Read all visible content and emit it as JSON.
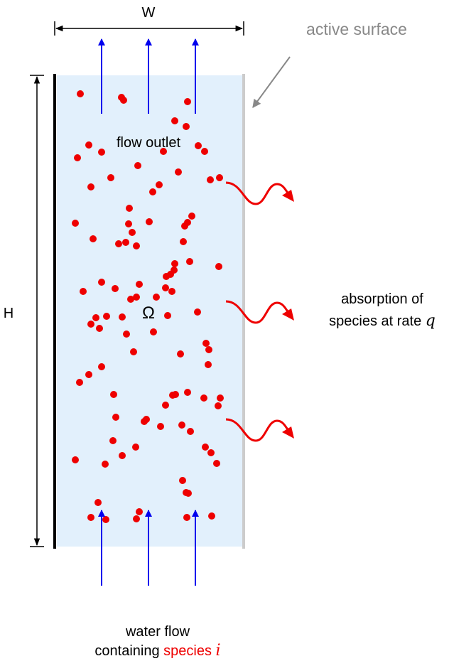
{
  "labels": {
    "width": "W",
    "height": "H",
    "active_surface": "active surface",
    "flow_outlet": "flow outlet",
    "domain": "Ω",
    "absorption_line1": "absorption of",
    "absorption_line2_prefix": "species at rate ",
    "absorption_rate_symbol": "q",
    "water_flow_line1": "water flow",
    "water_flow_line2_prefix": "containing ",
    "species_word": "species ",
    "species_symbol": "i"
  },
  "colors": {
    "domain_fill": "#e2f0fc",
    "particle": "#ee0000",
    "flow_arrow": "#0000ee",
    "absorption_arrow": "#ee0000",
    "active_surface": "#888888",
    "wall": "#000000"
  }
}
